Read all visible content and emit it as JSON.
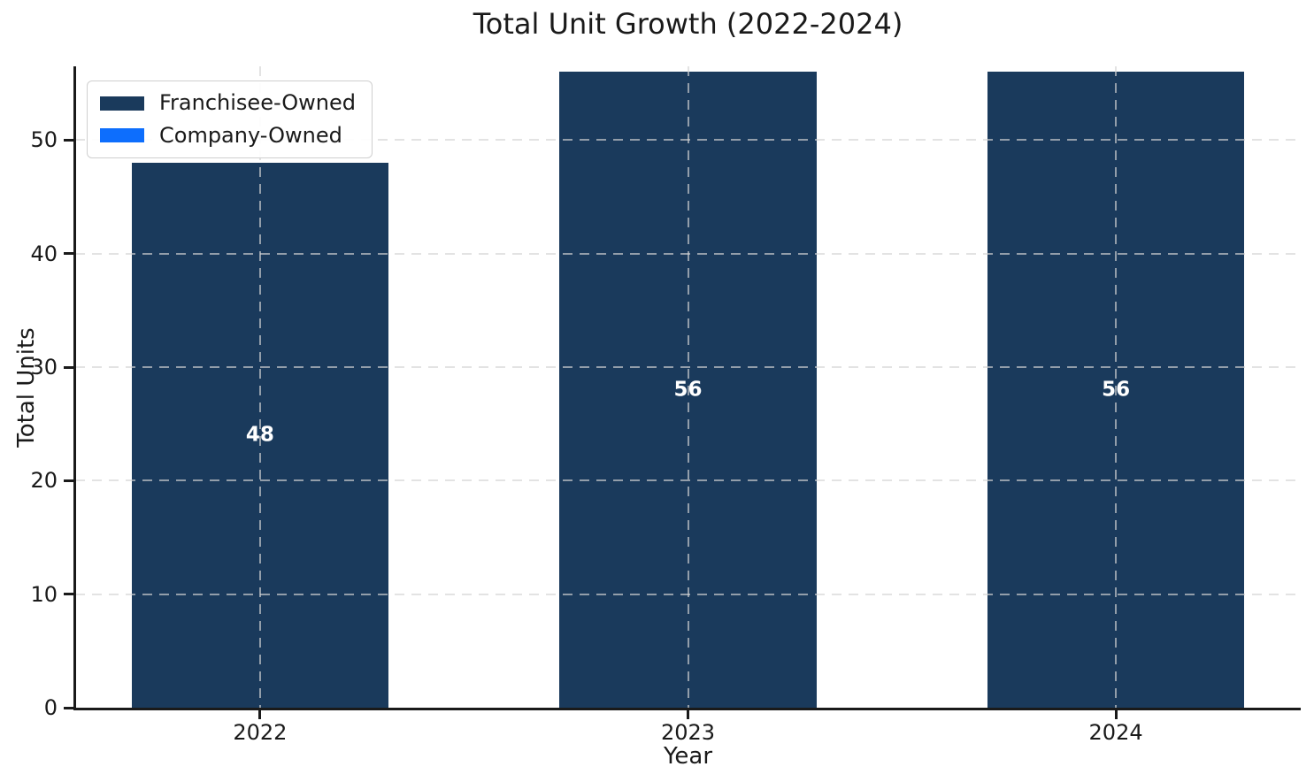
{
  "chart_data": {
    "type": "bar",
    "stacked": true,
    "title": "Total Unit Growth (2022-2024)",
    "xlabel": "Year",
    "ylabel": "Total Units",
    "categories": [
      "2022",
      "2023",
      "2024"
    ],
    "series": [
      {
        "name": "Franchisee-Owned",
        "color": "#1a3a5c",
        "values": [
          48,
          56,
          56
        ]
      },
      {
        "name": "Company-Owned",
        "color": "#0d6efd",
        "values": [
          0,
          0,
          0
        ]
      }
    ],
    "bar_labels": [
      "48",
      "56",
      "56"
    ],
    "bar_label_color": "#ffffff",
    "yticks": [
      0,
      10,
      20,
      30,
      40,
      50
    ],
    "ylim": [
      0,
      56.5
    ],
    "grid": {
      "style": "dashed",
      "axes": "both",
      "color": "#d4d4d4",
      "above_bars": true
    },
    "legend": {
      "position": "upper-left"
    },
    "axis_color": "#1a1a1a",
    "background": "#ffffff"
  }
}
